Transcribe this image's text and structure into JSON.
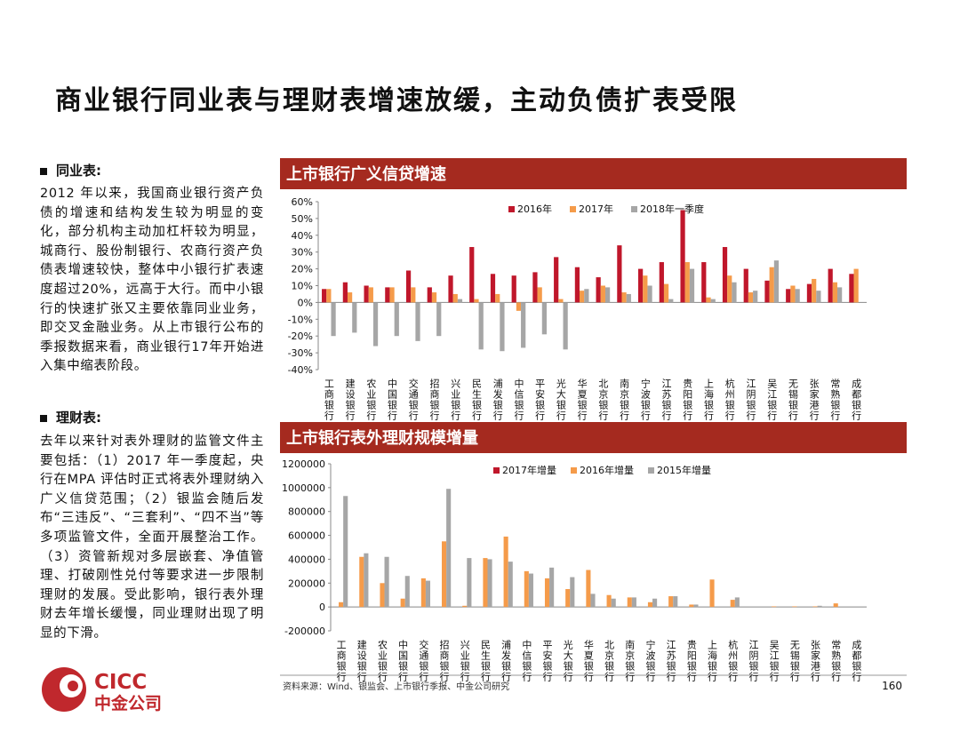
{
  "title": "商业银行同业表与理财表增速放缓，主动负债扩表受限",
  "sections": [
    {
      "heading": "同业表:",
      "body": "2012 年以来，我国商业银行资产负债的增速和结构发生较为明显的变化，部分机构主动加杠杆较为明显，城商行、股份制银行、农商行资产负债表增速较快，整体中小银行扩表速度超过20%，远高于大行。而中小银行的快速扩张又主要依靠同业业务，即交叉金融业务。从上市银行公布的季报数据来看，商业银行17年开始进入集中缩表阶段。"
    },
    {
      "heading": "理财表:",
      "body": "去年以来针对表外理财的监管文件主要包括：（1）2017 年一季度起，央行在MPA 评估时正式将表外理财纳入广义信贷范围；（2）银监会随后发布“三违反”、“三套利”、“四不当”等多项监管文件，全面开展整治工作。（3）资管新规对多层嵌套、净值管理、打破刚性兑付等要求进一步限制理财的发展。受此影响，银行表外理财去年增长缓慢，同业理财出现了明显的下滑。"
    }
  ],
  "chart_data": [
    {
      "type": "bar",
      "title": "上市银行广义信贷增速",
      "categories": [
        "工商银行",
        "建设银行",
        "农业银行",
        "中国银行",
        "交通银行",
        "招商银行",
        "兴业银行",
        "民生银行",
        "浦发银行",
        "中信银行",
        "平安银行",
        "光大银行",
        "华夏银行",
        "北京银行",
        "南京银行",
        "宁波银行",
        "江苏银行",
        "贵阳银行",
        "上海银行",
        "杭州银行",
        "江阴银行",
        "吴江银行",
        "无锡银行",
        "张家港行",
        "常熟银行",
        "成都银行"
      ],
      "series": [
        {
          "name": "2016年",
          "color": "#c0172b",
          "values": [
            8,
            12,
            10,
            9,
            19,
            9,
            16,
            33,
            17,
            16,
            18,
            27,
            21,
            15,
            34,
            20,
            24,
            55,
            24,
            33,
            20,
            13,
            8,
            11,
            20,
            17
          ]
        },
        {
          "name": "2017年",
          "color": "#f59b4a",
          "values": [
            8,
            6,
            9,
            9,
            9,
            6,
            5,
            2,
            5,
            -5,
            9,
            2,
            7,
            10,
            6,
            16,
            11,
            24,
            3,
            16,
            6,
            21,
            10,
            14,
            12,
            20
          ]
        },
        {
          "name": "2018年一季度",
          "color": "#a6a6a6",
          "values": [
            -20,
            -18,
            -26,
            -20,
            -23,
            -20,
            2,
            -28,
            -29,
            -27,
            -19,
            -28,
            8,
            9,
            5,
            10,
            2,
            20,
            2,
            12,
            7,
            25,
            8,
            7,
            9,
            null
          ]
        }
      ],
      "ylim": [
        -40,
        60
      ],
      "yticks": [
        {
          "value": -40,
          "label": "-40%"
        },
        {
          "value": -30,
          "label": "-30%"
        },
        {
          "value": -20,
          "label": "-20%"
        },
        {
          "value": -10,
          "label": "-10%"
        },
        {
          "value": 0,
          "label": "0%"
        },
        {
          "value": 10,
          "label": "10%"
        },
        {
          "value": 20,
          "label": "20%"
        },
        {
          "value": 30,
          "label": "30%"
        },
        {
          "value": 40,
          "label": "40%"
        },
        {
          "value": 50,
          "label": "50%"
        },
        {
          "value": 60,
          "label": "60%"
        }
      ]
    },
    {
      "type": "bar",
      "title": "上市银行表外理财规模增量",
      "categories": [
        "工商银行",
        "建设银行",
        "农业银行",
        "中国银行",
        "交通银行",
        "招商银行",
        "兴业银行",
        "民生银行",
        "浦发银行",
        "中信银行",
        "平安银行",
        "光大银行",
        "华夏银行",
        "北京银行",
        "南京银行",
        "宁波银行",
        "江苏银行",
        "贵阳银行",
        "上海银行",
        "杭州银行",
        "江阴银行",
        "吴江银行",
        "无锡银行",
        "张家港行",
        "常熟银行",
        "成都银行"
      ],
      "series": [
        {
          "name": "2017年增量",
          "color": "#c0172b",
          "values": [
            null,
            null,
            null,
            null,
            null,
            null,
            null,
            null,
            null,
            null,
            null,
            null,
            null,
            null,
            null,
            null,
            null,
            null,
            null,
            null,
            null,
            null,
            null,
            null,
            null,
            null
          ]
        },
        {
          "name": "2016年增量",
          "color": "#f59b4a",
          "values": [
            40000,
            420000,
            200000,
            70000,
            240000,
            550000,
            10000,
            410000,
            590000,
            300000,
            240000,
            150000,
            310000,
            100000,
            80000,
            40000,
            90000,
            20000,
            230000,
            60000,
            null,
            5000,
            5000,
            5000,
            30000,
            null
          ]
        },
        {
          "name": "2015年增量",
          "color": "#a6a6a6",
          "values": [
            930000,
            450000,
            420000,
            260000,
            220000,
            990000,
            410000,
            400000,
            380000,
            280000,
            330000,
            250000,
            110000,
            70000,
            80000,
            70000,
            90000,
            20000,
            null,
            80000,
            null,
            null,
            null,
            10000,
            null,
            null
          ]
        }
      ],
      "ylim": [
        -200000,
        1200000
      ],
      "yticks": [
        -200000,
        0,
        200000,
        400000,
        600000,
        800000,
        1000000,
        1200000
      ]
    }
  ],
  "source": "资料来源：Wind、银监会、上市银行季报、中金公司研究",
  "page_number": "160",
  "logo": {
    "en": "CICC",
    "cn": "中金公司"
  }
}
